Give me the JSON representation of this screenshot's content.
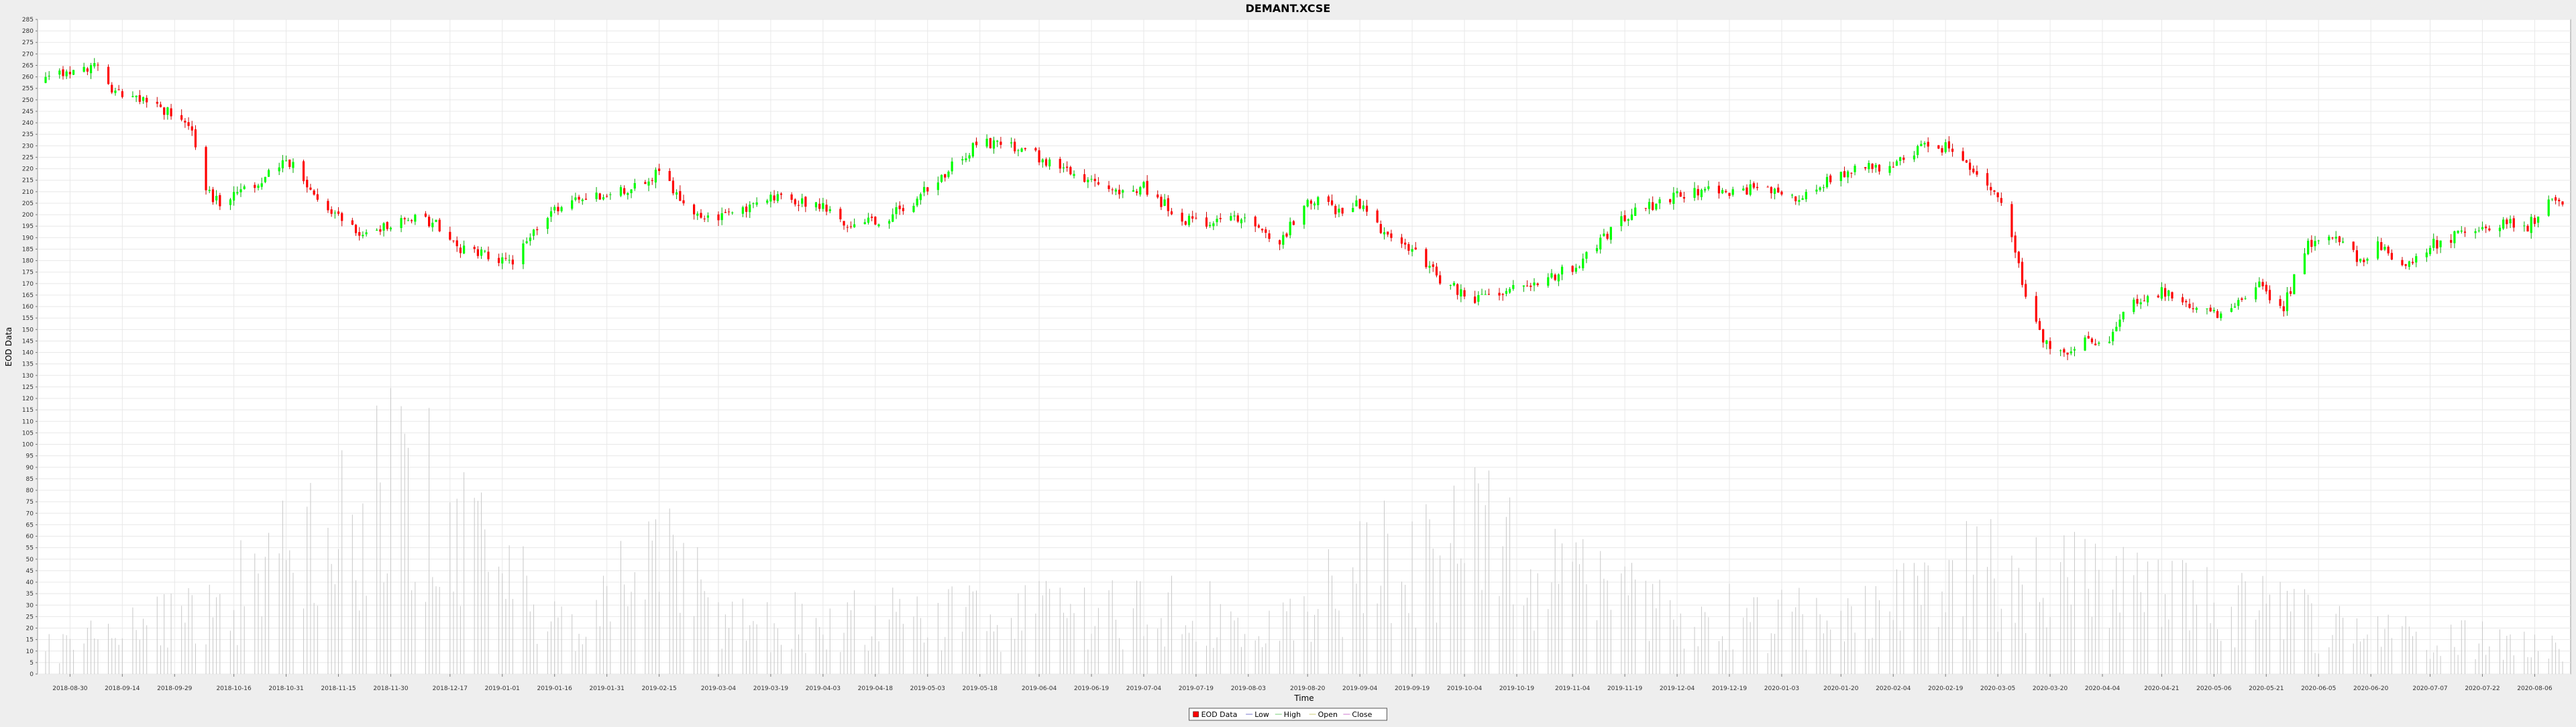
{
  "chart_data": {
    "type": "candlestick",
    "title": "DEMANT.XCSE",
    "xlabel": "Time",
    "ylabel": "EOD Data",
    "ylim": [
      0,
      285
    ],
    "ytick_step": 5,
    "x_range": [
      "2018-08-23",
      "2020-08-14"
    ],
    "grid": true,
    "legend": {
      "placement": "bottom-center",
      "items": [
        "EOD Data",
        "Low",
        "High",
        "Open",
        "Close"
      ]
    },
    "colors": {
      "up": "#00ff00",
      "down": "#ff0000",
      "wick_up": "#00aa00",
      "wick_down": "#cc0000",
      "volume": "#c8c8c8",
      "grid": "#e8e8e8"
    },
    "x_tick_labels": [
      "2018-08-30",
      "2018-09-14",
      "2018-09-29",
      "2018-10-16",
      "2018-10-31",
      "2018-11-15",
      "2018-11-30",
      "2018-12-17",
      "2019-01-01",
      "2019-01-16",
      "2019-01-31",
      "2019-02-15",
      "2019-03-04",
      "2019-03-19",
      "2019-04-03",
      "2019-04-18",
      "2019-05-03",
      "2019-05-18",
      "2019-06-04",
      "2019-06-19",
      "2019-07-04",
      "2019-07-19",
      "2019-08-03",
      "2019-08-20",
      "2019-09-04",
      "2019-09-19",
      "2019-10-04",
      "2019-10-19",
      "2019-11-04",
      "2019-11-19",
      "2019-12-04",
      "2019-12-19",
      "2020-01-03",
      "2020-01-20",
      "2020-02-04",
      "2020-02-19",
      "2020-03-05",
      "2020-03-20",
      "2020-04-04",
      "2020-04-21",
      "2020-05-06",
      "2020-05-21",
      "2020-06-05",
      "2020-06-20",
      "2020-07-07",
      "2020-07-22",
      "2020-08-06"
    ],
    "price_anchors": [
      [
        "2018-08-23",
        258
      ],
      [
        "2018-08-30",
        262
      ],
      [
        "2018-09-08",
        264
      ],
      [
        "2018-09-10",
        256
      ],
      [
        "2018-09-20",
        250
      ],
      [
        "2018-09-28",
        244
      ],
      [
        "2018-10-04",
        235
      ],
      [
        "2018-10-08",
        210
      ],
      [
        "2018-10-12",
        205
      ],
      [
        "2018-10-20",
        212
      ],
      [
        "2018-10-26",
        218
      ],
      [
        "2018-11-02",
        224
      ],
      [
        "2018-11-08",
        208
      ],
      [
        "2018-11-15",
        198
      ],
      [
        "2018-11-22",
        192
      ],
      [
        "2018-11-30",
        196
      ],
      [
        "2018-12-08",
        199
      ],
      [
        "2018-12-14",
        195
      ],
      [
        "2018-12-20",
        185
      ],
      [
        "2018-12-28",
        183
      ],
      [
        "2019-01-04",
        178
      ],
      [
        "2019-01-12",
        198
      ],
      [
        "2019-01-24",
        208
      ],
      [
        "2019-02-05",
        210
      ],
      [
        "2019-02-15",
        218
      ],
      [
        "2019-02-20",
        210
      ],
      [
        "2019-02-28",
        197
      ],
      [
        "2019-03-08",
        200
      ],
      [
        "2019-03-20",
        207
      ],
      [
        "2019-04-01",
        205
      ],
      [
        "2019-04-08",
        197
      ],
      [
        "2019-04-18",
        196
      ],
      [
        "2019-04-28",
        205
      ],
      [
        "2019-05-08",
        218
      ],
      [
        "2019-05-18",
        232
      ],
      [
        "2019-05-25",
        230
      ],
      [
        "2019-06-04",
        225
      ],
      [
        "2019-06-15",
        218
      ],
      [
        "2019-06-22",
        210
      ],
      [
        "2019-07-04",
        212
      ],
      [
        "2019-07-15",
        198
      ],
      [
        "2019-07-25",
        197
      ],
      [
        "2019-08-03",
        199
      ],
      [
        "2019-08-12",
        187
      ],
      [
        "2019-08-20",
        208
      ],
      [
        "2019-08-28",
        202
      ],
      [
        "2019-09-04",
        205
      ],
      [
        "2019-09-12",
        190
      ],
      [
        "2019-09-19",
        185
      ],
      [
        "2019-09-28",
        170
      ],
      [
        "2019-10-08",
        163
      ],
      [
        "2019-10-19",
        170
      ],
      [
        "2019-10-28",
        172
      ],
      [
        "2019-11-04",
        177
      ],
      [
        "2019-11-12",
        188
      ],
      [
        "2019-11-19",
        199
      ],
      [
        "2019-11-28",
        205
      ],
      [
        "2019-12-04",
        208
      ],
      [
        "2019-12-14",
        212
      ],
      [
        "2019-12-19",
        209
      ],
      [
        "2019-12-28",
        212
      ],
      [
        "2020-01-05",
        206
      ],
      [
        "2020-01-20",
        218
      ],
      [
        "2020-02-04",
        222
      ],
      [
        "2020-02-14",
        230
      ],
      [
        "2020-02-22",
        229
      ],
      [
        "2020-02-26",
        220
      ],
      [
        "2020-03-03",
        212
      ],
      [
        "2020-03-08",
        200
      ],
      [
        "2020-03-12",
        170
      ],
      [
        "2020-03-17",
        148
      ],
      [
        "2020-03-22",
        138
      ],
      [
        "2020-03-28",
        145
      ],
      [
        "2020-04-06",
        145
      ],
      [
        "2020-04-12",
        162
      ],
      [
        "2020-04-21",
        167
      ],
      [
        "2020-04-28",
        160
      ],
      [
        "2020-05-02",
        162
      ],
      [
        "2020-05-08",
        155
      ],
      [
        "2020-05-18",
        170
      ],
      [
        "2020-05-26",
        160
      ],
      [
        "2020-06-02",
        188
      ],
      [
        "2020-06-10",
        190
      ],
      [
        "2020-06-17",
        180
      ],
      [
        "2020-06-22",
        188
      ],
      [
        "2020-06-30",
        176
      ],
      [
        "2020-07-08",
        187
      ],
      [
        "2020-07-18",
        193
      ],
      [
        "2020-07-28",
        197
      ],
      [
        "2020-08-04",
        195
      ],
      [
        "2020-08-10",
        205
      ],
      [
        "2020-08-14",
        203
      ]
    ],
    "volume_anchors": [
      [
        "2018-08-23",
        15
      ],
      [
        "2018-10-10",
        38
      ],
      [
        "2018-11-30",
        122
      ],
      [
        "2019-01-20",
        25
      ],
      [
        "2019-02-15",
        70
      ],
      [
        "2019-03-10",
        30
      ],
      [
        "2019-05-20",
        35
      ],
      [
        "2019-08-20",
        40
      ],
      [
        "2019-10-04",
        98
      ],
      [
        "2019-10-20",
        62
      ],
      [
        "2019-11-19",
        48
      ],
      [
        "2020-01-20",
        30
      ],
      [
        "2020-02-19",
        57
      ],
      [
        "2020-03-20",
        62
      ],
      [
        "2020-04-21",
        45
      ],
      [
        "2020-05-21",
        38
      ],
      [
        "2020-06-20",
        22
      ],
      [
        "2020-07-22",
        25
      ],
      [
        "2020-08-14",
        15
      ]
    ]
  }
}
